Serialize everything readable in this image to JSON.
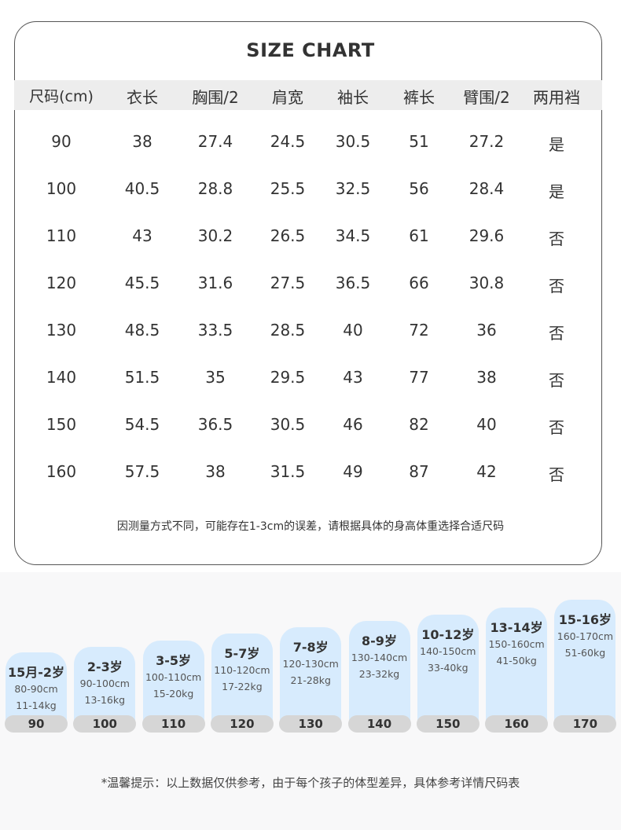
{
  "title": "SIZE CHART",
  "headers": [
    "尺码(cm)",
    "衣长",
    "胸围/2",
    "肩宽",
    "袖长",
    "裤长",
    "臂围/2",
    "两用裆"
  ],
  "rows": [
    [
      "90",
      "38",
      "27.4",
      "24.5",
      "30.5",
      "51",
      "27.2",
      "是"
    ],
    [
      "100",
      "40.5",
      "28.8",
      "25.5",
      "32.5",
      "56",
      "28.4",
      "是"
    ],
    [
      "110",
      "43",
      "30.2",
      "26.5",
      "34.5",
      "61",
      "29.6",
      "否"
    ],
    [
      "120",
      "45.5",
      "31.6",
      "27.5",
      "36.5",
      "66",
      "30.8",
      "否"
    ],
    [
      "130",
      "48.5",
      "33.5",
      "28.5",
      "40",
      "72",
      "36",
      "否"
    ],
    [
      "140",
      "51.5",
      "35",
      "29.5",
      "43",
      "77",
      "38",
      "否"
    ],
    [
      "150",
      "54.5",
      "36.5",
      "30.5",
      "46",
      "82",
      "40",
      "否"
    ],
    [
      "160",
      "57.5",
      "38",
      "31.5",
      "49",
      "87",
      "42",
      "否"
    ]
  ],
  "note": "因测量方式不同，可能存在1-3cm的误差，请根据具体的身高体重选择合适尺码",
  "guide": [
    {
      "age": "15月-2岁",
      "height": "80-90cm",
      "weight": "11-14kg",
      "size": "90"
    },
    {
      "age": "2-3岁",
      "height": "90-100cm",
      "weight": "13-16kg",
      "size": "100"
    },
    {
      "age": "3-5岁",
      "height": "100-110cm",
      "weight": "15-20kg",
      "size": "110"
    },
    {
      "age": "5-7岁",
      "height": "110-120cm",
      "weight": "17-22kg",
      "size": "120"
    },
    {
      "age": "7-8岁",
      "height": "120-130cm",
      "weight": "21-28kg",
      "size": "130"
    },
    {
      "age": "8-9岁",
      "height": "130-140cm",
      "weight": "23-32kg",
      "size": "140"
    },
    {
      "age": "10-12岁",
      "height": "140-150cm",
      "weight": "33-40kg",
      "size": "150"
    },
    {
      "age": "13-14岁",
      "height": "150-160cm",
      "weight": "41-50kg",
      "size": "160"
    },
    {
      "age": "15-16岁",
      "height": "160-170cm",
      "weight": "51-60kg",
      "size": "170"
    }
  ],
  "tip": "*温馨提示：以上数据仅供参考，由于每个孩子的体型差异，具体参考详情尺码表"
}
